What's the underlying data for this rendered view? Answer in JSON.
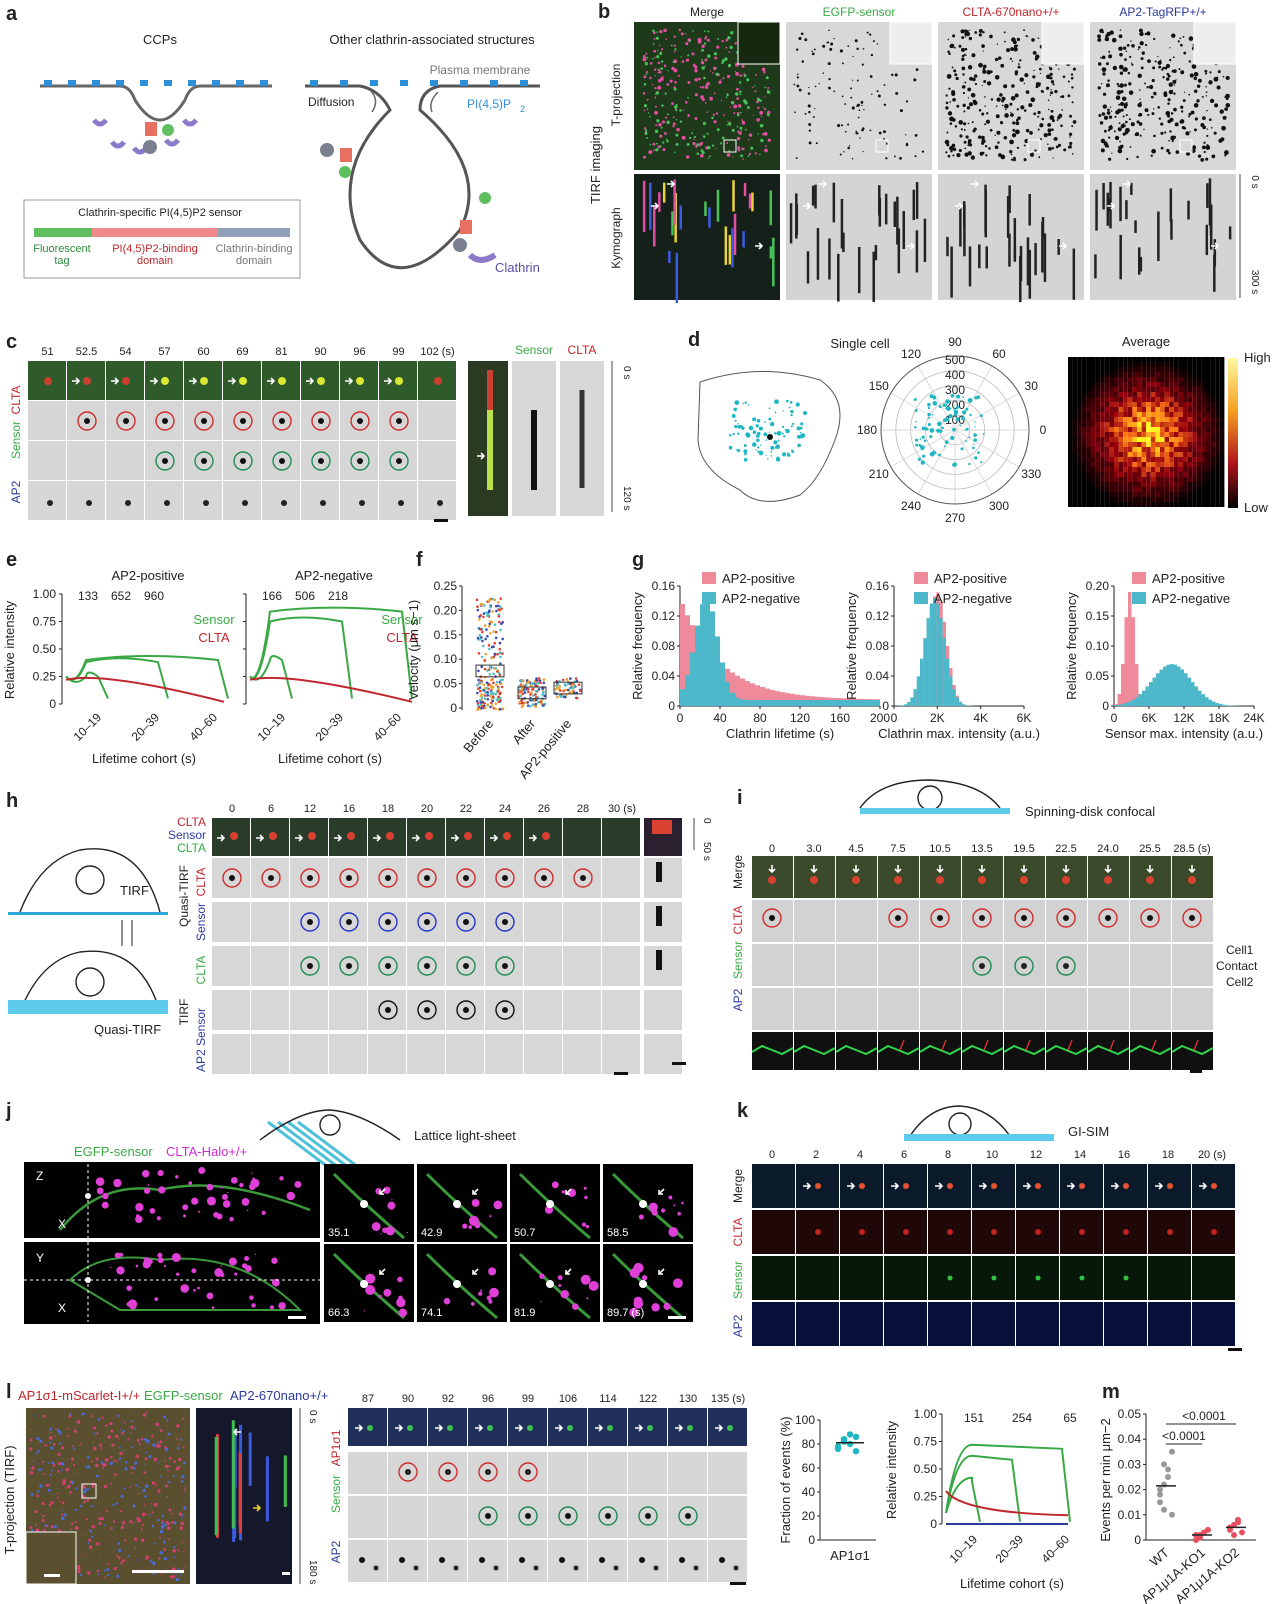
{
  "panel_letters": [
    "a",
    "b",
    "c",
    "d",
    "e",
    "f",
    "g",
    "h",
    "i",
    "j",
    "k",
    "l",
    "m"
  ],
  "a": {
    "ccp_title": "CCPs",
    "other_title": "Other clathrin-associated structures",
    "plasma_membrane": "Plasma membrane",
    "diffusion": "Diffusion",
    "pip2": "PI(4,5)P",
    "pip2_sub": "2",
    "clathrin": "Clathrin",
    "sensor_title": "Clathrin-specific PI(4,5)P",
    "sensor_title_tail": " sensor",
    "fluor_tag": [
      "Fluorescent",
      "tag"
    ],
    "binding_domain": [
      "PI(4,5)P",
      "2",
      "-binding",
      "domain"
    ],
    "clathrin_binding": [
      "Clathrin-binding",
      "domain"
    ]
  },
  "b": {
    "cols": [
      "Merge",
      "EGFP-sensor",
      "CLTA-670nano",
      "AP2-TagRFP"
    ],
    "sup": "+/+",
    "rows": [
      "T-projection",
      "Kymograph"
    ],
    "side": "TIRF imaging",
    "t0": "0 s",
    "t1": "300 s"
  },
  "c": {
    "times": [
      "51",
      "52.5",
      "54",
      "57",
      "60",
      "69",
      "81",
      "90",
      "96",
      "99",
      "102 (s)"
    ],
    "rows": [
      "CLTA",
      "Sensor",
      "AP2"
    ],
    "kymo_labels": [
      "Sensor",
      "CLTA"
    ],
    "t0": "0 s",
    "t1": "120 s"
  },
  "d": {
    "single_cell": "Single cell",
    "average": "Average",
    "high": "High",
    "low": "Low",
    "angles": [
      "90",
      "60",
      "30",
      "0",
      "330",
      "300",
      "270",
      "240",
      "210",
      "180",
      "150",
      "120"
    ],
    "radii": [
      "500",
      "400",
      "300",
      "200",
      "100"
    ]
  },
  "e": {
    "ylabel": "Relative intensity",
    "xlabel": "Lifetime cohort (s)",
    "yticks": [
      "1.00",
      "0.75",
      "0.50",
      "0.25",
      "0"
    ],
    "xticks": [
      "10–19",
      "20–39",
      "40–60"
    ],
    "panels": [
      {
        "title": "AP2-positive",
        "counts": [
          "133",
          "652",
          "960"
        ]
      },
      {
        "title": "AP2-negative",
        "counts": [
          "166",
          "506",
          "218"
        ]
      }
    ],
    "legend": [
      "Sensor",
      "CLTA"
    ]
  },
  "f": {
    "ylabel": "Velocity (μm s",
    "ylabel_sup": "−1",
    "ylabel_tail": ")",
    "yticks": [
      "0.25",
      "0.20",
      "0.15",
      "0.10",
      "0.05",
      "0"
    ],
    "categories": [
      "Before",
      "After",
      "AP2-positive"
    ]
  },
  "g": {
    "legend": [
      "AP2-positive",
      "AP2-negative"
    ],
    "ylabel": "Relative frequency",
    "panels": [
      {
        "xlabel": "Clathrin lifetime (s)",
        "xticks": [
          "0",
          "40",
          "80",
          "120",
          "160",
          "200"
        ],
        "yticks": [
          "0.16",
          "0.12",
          "0.08",
          "0.04",
          "0"
        ]
      },
      {
        "xlabel": "Clathrin max. intensity (a.u.)",
        "xticks": [
          "0",
          "2K",
          "4K",
          "6K"
        ],
        "yticks": [
          "0.16",
          "0.12",
          "0.08",
          "0.04",
          "0"
        ]
      },
      {
        "xlabel": "Sensor max. intensity (a.u.)",
        "xticks": [
          "0",
          "6K",
          "12K",
          "18K",
          "24K"
        ],
        "yticks": [
          "0.20",
          "0.15",
          "0.10",
          "0.05",
          "0"
        ]
      }
    ]
  },
  "h": {
    "times": [
      "0",
      "6",
      "12",
      "16",
      "18",
      "20",
      "22",
      "24",
      "26",
      "28",
      "30 (s)"
    ],
    "merge_labels": [
      "CLTA",
      "Sensor",
      "CLTA"
    ],
    "tirf": "TIRF",
    "quasi": "Quasi-TIRF",
    "rows": [
      "CLTA",
      "Sensor",
      "CLTA",
      "Sensor",
      "AP2"
    ],
    "groups": [
      "Quasi-TIRF",
      "TIRF"
    ],
    "t0": "0",
    "t1": "50 s"
  },
  "i": {
    "title": "Spinning-disk confocal",
    "times": [
      "0",
      "3.0",
      "4.5",
      "7.5",
      "10.5",
      "13.5",
      "19.5",
      "22.5",
      "24.0",
      "25.5",
      "28.5 (s)"
    ],
    "rows": [
      "Merge",
      "CLTA",
      "Sensor",
      "AP2"
    ],
    "cell1": "Cell1",
    "contact": "Contact",
    "cell2": "Cell2"
  },
  "j": {
    "title": "Lattice light-sheet",
    "legend": [
      "EGFP-sensor",
      "CLTA-Halo"
    ],
    "sup": "+/+",
    "times": [
      "35.1",
      "42.9",
      "50.7",
      "58.5",
      "66.3",
      "74.1",
      "81.9",
      "89.7 (s)"
    ],
    "axes": [
      "Z",
      "X",
      "Y",
      "X"
    ]
  },
  "k": {
    "title": "GI-SIM",
    "times": [
      "0",
      "2",
      "4",
      "6",
      "8",
      "10",
      "12",
      "14",
      "16",
      "18",
      "20 (s)"
    ],
    "rows": [
      "Merge",
      "CLTA",
      "Sensor",
      "AP2"
    ]
  },
  "l": {
    "labels": [
      "AP1σ1-mScarlet-I",
      "EGFP-sensor",
      "AP2-670nano"
    ],
    "sup": "+/+",
    "side": "T-projection (TIRF)",
    "t0": "0 s",
    "t1": "180 s",
    "times": [
      "87",
      "90",
      "92",
      "96",
      "99",
      "106",
      "114",
      "122",
      "130",
      "135 (s)"
    ],
    "rows": [
      "AP1σ1",
      "Sensor",
      "AP2"
    ],
    "frac_ylabel": "Fraction of events (%)",
    "frac_yticks": [
      "100",
      "80",
      "60",
      "40",
      "20",
      "0"
    ],
    "frac_x": "AP1σ1",
    "int_ylabel": "Relative intensity",
    "int_yticks": [
      "1.00",
      "0.75",
      "0.50",
      "0.25",
      "0"
    ],
    "int_counts": [
      "151",
      "254",
      "65"
    ],
    "int_xticks": [
      "10–19",
      "20–39",
      "40–60"
    ],
    "int_xlabel": "Lifetime cohort (s)"
  },
  "m": {
    "ylabel": "Events per min μm",
    "ylabel_sup": "−2",
    "yticks": [
      "0.05",
      "0.04",
      "0.03",
      "0.02",
      "0.01",
      "0"
    ],
    "categories": [
      "WT",
      "AP1μ1A-KO1",
      "AP1μ1A-KO2"
    ],
    "pvals": [
      "<0.0001",
      "<0.0001"
    ]
  },
  "colors": {
    "sensor": "#3aa845",
    "clta": "#c0272d",
    "ap2": "#2b3a9e",
    "pink": "#ef8a9a",
    "teal": "#4cb8c9",
    "cyan": "#1eb7c4"
  }
}
